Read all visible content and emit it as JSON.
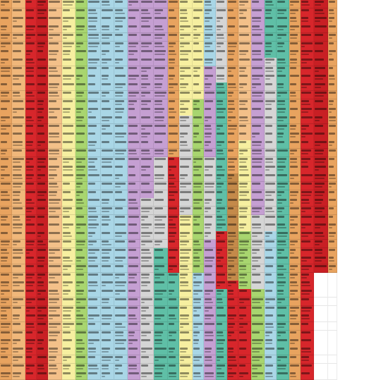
{
  "palette": {
    "orange": "#e8a35f",
    "orange_light": "#f0b77a",
    "red": "#d7262b",
    "red_dark": "#c81f24",
    "peach": "#f3c089",
    "yellow": "#f6efa0",
    "green": "#a8d56f",
    "blue": "#a9d6e6",
    "purple": "#c59fd2",
    "grey": "#d5d5d5",
    "teal": "#5fbfa6",
    "brown": "#c48a4a",
    "white": "#ffffff"
  },
  "columns": [
    {
      "color": "orange",
      "segments": []
    },
    {
      "color": "orange_light",
      "segments": []
    },
    {
      "color": "red",
      "segments": []
    },
    {
      "color": "red_dark",
      "segments": []
    },
    {
      "color": "peach",
      "segments": []
    },
    {
      "color": "yellow",
      "segments": []
    },
    {
      "color": "green",
      "segments": []
    },
    {
      "color": "blue",
      "segments": []
    },
    {
      "color": "blue",
      "segments": []
    },
    {
      "color": "blue",
      "segments": [
        {
          "from": 0,
          "to": 60,
          "color": "blue"
        },
        {
          "from": 60,
          "to": 100,
          "color": "blue"
        }
      ]
    },
    {
      "color": "purple",
      "segments": []
    },
    {
      "color": "purple",
      "segments": [
        {
          "from": 0,
          "to": 52,
          "color": "purple"
        },
        {
          "from": 52,
          "to": 100,
          "color": "grey"
        }
      ]
    },
    {
      "color": "purple",
      "segments": [
        {
          "from": 0,
          "to": 40,
          "color": "purple"
        },
        {
          "from": 40,
          "to": 65,
          "color": "grey"
        },
        {
          "from": 65,
          "to": 100,
          "color": "teal"
        }
      ]
    },
    {
      "color": "orange",
      "segments": [
        {
          "from": 0,
          "to": 40,
          "color": "orange"
        },
        {
          "from": 40,
          "to": 70,
          "color": "red"
        },
        {
          "from": 70,
          "to": 100,
          "color": "teal"
        }
      ]
    },
    {
      "color": "yellow",
      "segments": [
        {
          "from": 0,
          "to": 30,
          "color": "yellow"
        },
        {
          "from": 30,
          "to": 55,
          "color": "grey"
        },
        {
          "from": 55,
          "to": 100,
          "color": "yellow"
        }
      ]
    },
    {
      "color": "green",
      "segments": [
        {
          "from": 0,
          "to": 25,
          "color": "yellow"
        },
        {
          "from": 25,
          "to": 70,
          "color": "green"
        },
        {
          "from": 70,
          "to": 100,
          "color": "blue"
        }
      ]
    },
    {
      "color": "blue",
      "segments": [
        {
          "from": 0,
          "to": 16,
          "color": "blue"
        },
        {
          "from": 16,
          "to": 40,
          "color": "purple"
        },
        {
          "from": 40,
          "to": 62,
          "color": "grey"
        },
        {
          "from": 62,
          "to": 100,
          "color": "purple"
        }
      ]
    },
    {
      "color": "teal",
      "segments": [
        {
          "from": 0,
          "to": 20,
          "color": "grey"
        },
        {
          "from": 20,
          "to": 60,
          "color": "teal"
        },
        {
          "from": 60,
          "to": 74,
          "color": "red"
        },
        {
          "from": 74,
          "to": 100,
          "color": "teal"
        }
      ]
    },
    {
      "color": "orange",
      "segments": [
        {
          "from": 0,
          "to": 45,
          "color": "orange"
        },
        {
          "from": 45,
          "to": 72,
          "color": "brown"
        },
        {
          "from": 72,
          "to": 100,
          "color": "red"
        }
      ]
    },
    {
      "color": "yellow",
      "segments": [
        {
          "from": 0,
          "to": 35,
          "color": "peach"
        },
        {
          "from": 35,
          "to": 60,
          "color": "yellow"
        },
        {
          "from": 60,
          "to": 75,
          "color": "green"
        },
        {
          "from": 75,
          "to": 100,
          "color": "red"
        }
      ]
    },
    {
      "color": "purple",
      "segments": [
        {
          "from": 0,
          "to": 55,
          "color": "purple"
        },
        {
          "from": 55,
          "to": 75,
          "color": "grey"
        },
        {
          "from": 75,
          "to": 100,
          "color": "green"
        }
      ]
    },
    {
      "color": "grey",
      "segments": [
        {
          "from": 0,
          "to": 15,
          "color": "teal"
        },
        {
          "from": 15,
          "to": 60,
          "color": "grey"
        },
        {
          "from": 60,
          "to": 100,
          "color": "blue"
        }
      ]
    },
    {
      "color": "teal",
      "segments": [
        {
          "from": 0,
          "to": 100,
          "color": "teal"
        }
      ]
    },
    {
      "color": "orange",
      "segments": [
        {
          "from": 0,
          "to": 100,
          "color": "orange"
        }
      ]
    },
    {
      "color": "red",
      "segments": []
    },
    {
      "color": "red_dark",
      "segments": [
        {
          "from": 0,
          "to": 70,
          "color": "red_dark"
        },
        {
          "from": 70,
          "to": 100,
          "color": "white"
        }
      ]
    },
    {
      "color": "orange",
      "segments": [
        {
          "from": 0,
          "to": 70,
          "color": "orange"
        },
        {
          "from": 70,
          "to": 100,
          "color": "white"
        }
      ]
    }
  ],
  "rows": 46
}
